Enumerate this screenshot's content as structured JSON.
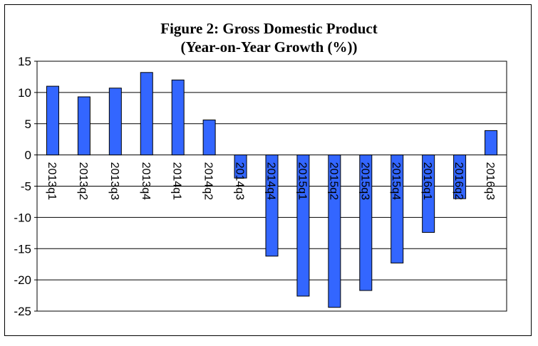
{
  "chart_data": {
    "type": "bar",
    "title_line1": "Figure 2: Gross Domestic Product",
    "title_line2": "(Year-on-Year Growth (%))",
    "xlabel": "",
    "ylabel": "",
    "ylim": [
      -25,
      15
    ],
    "yticks": [
      15,
      10,
      5,
      0,
      -5,
      -10,
      -15,
      -20,
      -25
    ],
    "grid": true,
    "legend": "none",
    "bar_color": "#3366ff",
    "categories": [
      "2013q1",
      "2013q2",
      "2013q3",
      "2013q4",
      "2014q1",
      "2014q2",
      "2014q3",
      "2014q4",
      "2015q1",
      "2015q2",
      "2015q3",
      "2015q4",
      "2016q1",
      "2016q2",
      "2016q3"
    ],
    "values": [
      11.0,
      9.3,
      10.7,
      13.2,
      12.0,
      5.6,
      -3.7,
      -16.2,
      -22.6,
      -24.4,
      -21.7,
      -17.3,
      -12.4,
      -7.0,
      3.9
    ]
  }
}
